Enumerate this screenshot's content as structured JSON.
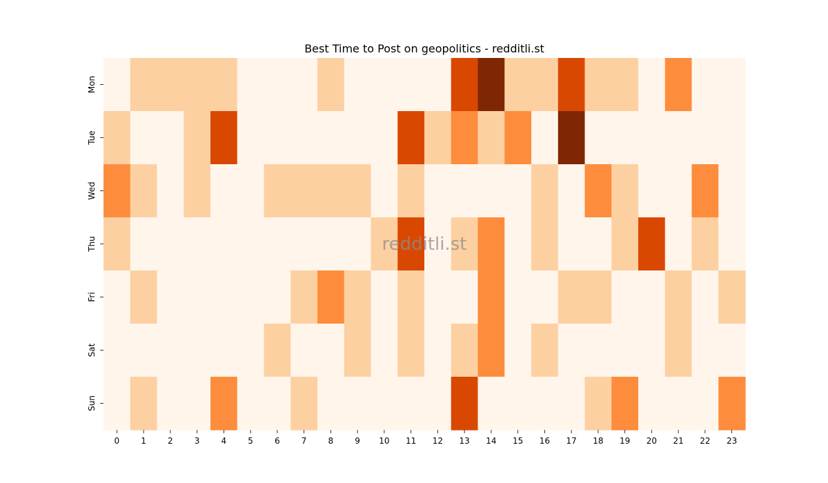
{
  "chart_data": {
    "type": "heatmap",
    "title": "Best Time to Post on geopolitics - redditli.st",
    "watermark": "redditli.st",
    "x_categories": [
      "0",
      "1",
      "2",
      "3",
      "4",
      "5",
      "6",
      "7",
      "8",
      "9",
      "10",
      "11",
      "12",
      "13",
      "14",
      "15",
      "16",
      "17",
      "18",
      "19",
      "20",
      "21",
      "22",
      "23"
    ],
    "y_categories": [
      "Mon",
      "Tue",
      "Wed",
      "Thu",
      "Fri",
      "Sat",
      "Sun"
    ],
    "values": [
      [
        0,
        1,
        1,
        1,
        1,
        0,
        0,
        0,
        1,
        0,
        0,
        0,
        0,
        3,
        4,
        1,
        1,
        3,
        1,
        1,
        0,
        2,
        0,
        0
      ],
      [
        1,
        0,
        0,
        1,
        3,
        0,
        0,
        0,
        0,
        0,
        0,
        3,
        1,
        2,
        1,
        2,
        0,
        4,
        0,
        0,
        0,
        0,
        0,
        0
      ],
      [
        2,
        1,
        0,
        1,
        0,
        0,
        1,
        1,
        1,
        1,
        0,
        1,
        0,
        0,
        0,
        0,
        1,
        0,
        2,
        1,
        0,
        0,
        2,
        0
      ],
      [
        1,
        0,
        0,
        0,
        0,
        0,
        0,
        0,
        0,
        0,
        1,
        3,
        0,
        1,
        2,
        0,
        1,
        0,
        0,
        1,
        3,
        0,
        1,
        0
      ],
      [
        0,
        1,
        0,
        0,
        0,
        0,
        0,
        1,
        2,
        1,
        0,
        1,
        0,
        0,
        2,
        0,
        0,
        1,
        1,
        0,
        0,
        1,
        0,
        1
      ],
      [
        0,
        0,
        0,
        0,
        0,
        0,
        1,
        0,
        0,
        1,
        0,
        1,
        0,
        1,
        2,
        0,
        1,
        0,
        0,
        0,
        0,
        1,
        0,
        0
      ],
      [
        0,
        1,
        0,
        0,
        2,
        0,
        0,
        1,
        0,
        0,
        0,
        0,
        0,
        3,
        0,
        0,
        0,
        0,
        1,
        2,
        0,
        0,
        0,
        2
      ]
    ],
    "value_range": [
      0,
      4
    ],
    "colormap": {
      "0": "#fff5eb",
      "1": "#fdd0a2",
      "2": "#fd8d3c",
      "3": "#d94801",
      "4": "#7f2704"
    },
    "legend": "none",
    "grid": false
  }
}
